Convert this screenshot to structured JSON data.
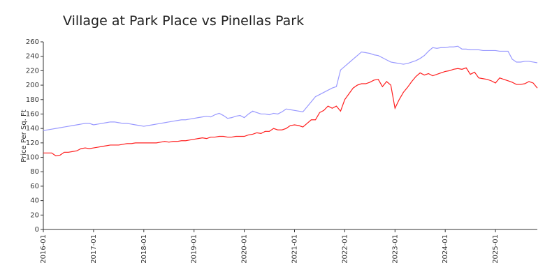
{
  "chart_data": {
    "type": "line",
    "title": "Village at Park Place vs Pinellas Park",
    "y_label": "Price Per Sq. Ft",
    "x": [
      "2016-01",
      "2016-02",
      "2016-03",
      "2016-04",
      "2016-05",
      "2016-06",
      "2016-07",
      "2016-08",
      "2016-09",
      "2016-10",
      "2016-11",
      "2016-12",
      "2017-01",
      "2017-02",
      "2017-03",
      "2017-04",
      "2017-05",
      "2017-06",
      "2017-07",
      "2017-08",
      "2017-09",
      "2017-10",
      "2017-11",
      "2017-12",
      "2018-01",
      "2018-02",
      "2018-03",
      "2018-04",
      "2018-05",
      "2018-06",
      "2018-07",
      "2018-08",
      "2018-09",
      "2018-10",
      "2018-11",
      "2018-12",
      "2019-01",
      "2019-02",
      "2019-03",
      "2019-04",
      "2019-05",
      "2019-06",
      "2019-07",
      "2019-08",
      "2019-09",
      "2019-10",
      "2019-11",
      "2019-12",
      "2020-01",
      "2020-02",
      "2020-03",
      "2020-04",
      "2020-05",
      "2020-06",
      "2020-07",
      "2020-08",
      "2020-09",
      "2020-10",
      "2020-11",
      "2020-12",
      "2021-01",
      "2021-02",
      "2021-03",
      "2021-04",
      "2021-05",
      "2021-06",
      "2021-07",
      "2021-08",
      "2021-09",
      "2021-10",
      "2021-11",
      "2021-12",
      "2022-01",
      "2022-02",
      "2022-03",
      "2022-04",
      "2022-05",
      "2022-06",
      "2022-07",
      "2022-08",
      "2022-09",
      "2022-10",
      "2022-11",
      "2022-12",
      "2023-01",
      "2023-02",
      "2023-03",
      "2023-04",
      "2023-05",
      "2023-06",
      "2023-07",
      "2023-08",
      "2023-09",
      "2023-10",
      "2023-11",
      "2023-12",
      "2024-01",
      "2024-02",
      "2024-03",
      "2024-04",
      "2024-05",
      "2024-06",
      "2024-07",
      "2024-08",
      "2024-09",
      "2024-10",
      "2024-11",
      "2024-12",
      "2025-01",
      "2025-02",
      "2025-03",
      "2025-04",
      "2025-05",
      "2025-06",
      "2025-07",
      "2025-08",
      "2025-09",
      "2025-10",
      "2025-11"
    ],
    "series": [
      {
        "color": "#ff1f1f",
        "values": [
          106,
          106,
          106,
          102,
          103,
          107,
          107,
          108,
          109,
          112,
          113,
          112,
          113,
          114,
          115,
          116,
          117,
          117,
          117,
          118,
          119,
          119,
          120,
          120,
          120,
          120,
          120,
          120,
          121,
          122,
          121,
          122,
          122,
          123,
          123,
          124,
          125,
          126,
          127,
          126,
          128,
          128,
          129,
          129,
          128,
          128,
          129,
          129,
          129,
          131,
          132,
          134,
          133,
          136,
          136,
          140,
          138,
          138,
          140,
          144,
          145,
          144,
          142,
          147,
          152,
          152,
          162,
          165,
          171,
          168,
          171,
          164,
          180,
          188,
          196,
          200,
          202,
          202,
          204,
          207,
          208,
          198,
          205,
          200,
          168,
          180,
          190,
          197,
          205,
          212,
          217,
          214,
          216,
          213,
          215,
          217,
          219,
          220,
          222,
          223,
          222,
          224,
          215,
          218,
          210,
          209,
          208,
          206,
          203,
          210,
          208,
          206,
          204,
          201,
          201,
          202,
          205,
          203,
          196
        ]
      },
      {
        "color": "#9999ff",
        "values": [
          137,
          138,
          139,
          140,
          141,
          142,
          143,
          144,
          145,
          146,
          147,
          147,
          145,
          146,
          147,
          148,
          149,
          149,
          148,
          147,
          147,
          146,
          145,
          144,
          143,
          144,
          145,
          146,
          147,
          148,
          149,
          150,
          151,
          152,
          152,
          153,
          154,
          155,
          156,
          157,
          156,
          159,
          161,
          158,
          154,
          155,
          157,
          158,
          155,
          160,
          164,
          162,
          160,
          160,
          159,
          161,
          160,
          163,
          167,
          166,
          165,
          164,
          163,
          170,
          177,
          184,
          187,
          190,
          193,
          196,
          198,
          221,
          226,
          231,
          236,
          241,
          246,
          245,
          244,
          242,
          241,
          238,
          235,
          232,
          231,
          230,
          229,
          230,
          232,
          234,
          237,
          241,
          247,
          252,
          251,
          252,
          252,
          253,
          253,
          254,
          250,
          250,
          249,
          249,
          249,
          248,
          248,
          248,
          248,
          247,
          247,
          247,
          236,
          232,
          232,
          233,
          233,
          232,
          231
        ]
      }
    ],
    "xticks": [
      "2016-01",
      "2017-01",
      "2018-01",
      "2019-01",
      "2020-01",
      "2021-01",
      "2022-01",
      "2023-01",
      "2024-01",
      "2025-01"
    ],
    "ylim": [
      0,
      260
    ],
    "yticks": [
      0,
      20,
      40,
      60,
      80,
      100,
      120,
      140,
      160,
      180,
      200,
      220,
      240,
      260
    ],
    "grid": false
  }
}
